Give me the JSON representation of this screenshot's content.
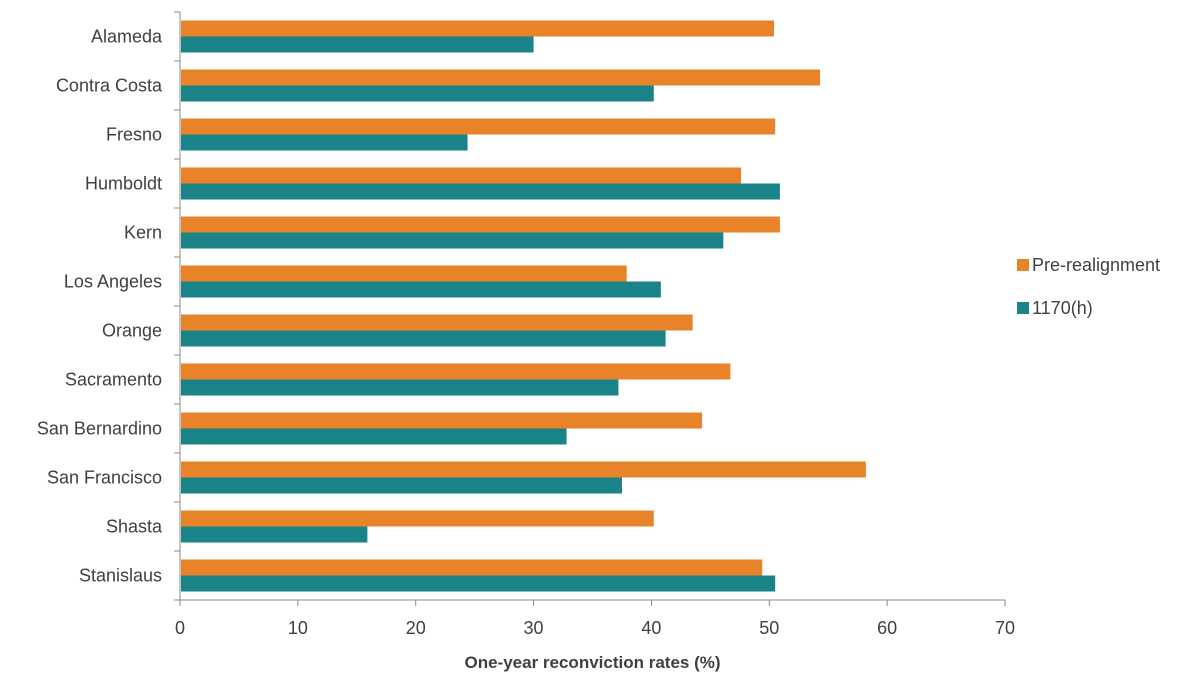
{
  "chart_data": {
    "type": "bar",
    "orientation": "horizontal",
    "categories": [
      "Alameda",
      "Contra Costa",
      "Fresno",
      "Humboldt",
      "Kern",
      "Los Angeles",
      "Orange",
      "Sacramento",
      "San Bernardino",
      "San Francisco",
      "Shasta",
      "Stanislaus"
    ],
    "series": [
      {
        "name": "Pre-realignment",
        "color": "#E8832A",
        "values": [
          50.4,
          54.3,
          50.5,
          47.6,
          50.9,
          37.9,
          43.5,
          46.7,
          44.3,
          58.2,
          40.2,
          49.4
        ]
      },
      {
        "name": "1170(h)",
        "color": "#1A8387",
        "values": [
          30.0,
          40.2,
          24.4,
          50.9,
          46.1,
          40.8,
          41.2,
          37.2,
          32.8,
          37.5,
          15.9,
          50.5
        ]
      }
    ],
    "xlabel": "One-year reconviction rates (%)",
    "xlim": [
      0,
      70
    ],
    "xticks": [
      0,
      10,
      20,
      30,
      40,
      50,
      60,
      70
    ],
    "grid": false,
    "legend_position": "right"
  }
}
